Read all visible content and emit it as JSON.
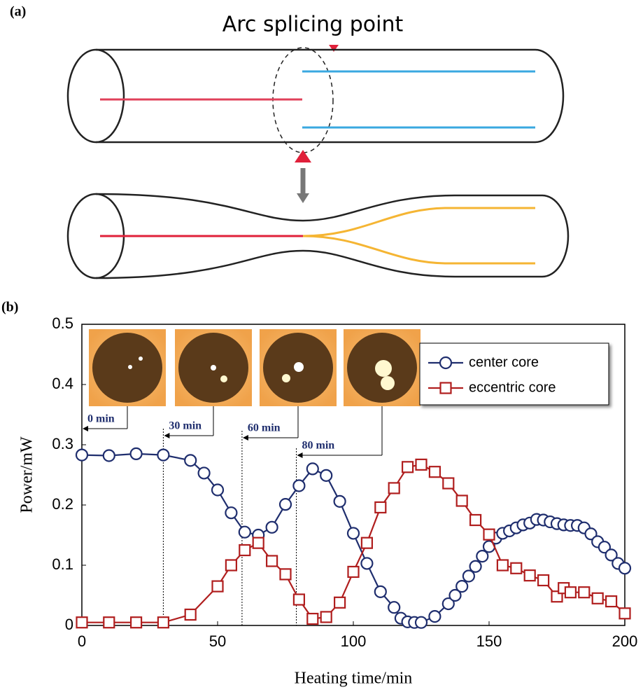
{
  "panel_a": {
    "label": "(a)",
    "annotation": "Arc splicing point"
  },
  "chart_data": {
    "type": "line",
    "label": "(b)",
    "xlabel": "Heating time/min",
    "ylabel": "Power/mW",
    "xlim": [
      0,
      200
    ],
    "xticks": [
      0,
      50,
      100,
      150,
      200
    ],
    "ylim": [
      0,
      0.5
    ],
    "yticks": [
      0,
      0.1,
      0.2,
      0.3,
      0.4,
      0.5
    ],
    "legend": "upper right",
    "series": [
      {
        "name": "center core",
        "color": "#1f2e6e",
        "marker": "circle",
        "x": [
          0,
          10,
          20,
          30,
          40,
          45,
          50,
          55,
          60,
          65,
          70,
          75,
          80,
          85,
          90,
          95,
          100,
          105,
          110,
          115,
          117.5,
          120,
          122.5,
          125,
          130,
          135,
          137.5,
          140,
          142.5,
          145,
          147.5,
          150,
          152.5,
          155,
          157.5,
          160,
          162.5,
          165,
          167.5,
          170,
          172.5,
          175,
          177.5,
          180,
          182.5,
          185,
          187.5,
          190,
          192.5,
          195,
          197.5,
          200
        ],
        "values": [
          0.283,
          0.282,
          0.285,
          0.283,
          0.274,
          0.253,
          0.225,
          0.187,
          0.155,
          0.15,
          0.163,
          0.201,
          0.232,
          0.26,
          0.249,
          0.206,
          0.153,
          0.103,
          0.056,
          0.03,
          0.012,
          0.006,
          0.005,
          0.005,
          0.015,
          0.036,
          0.05,
          0.065,
          0.082,
          0.098,
          0.115,
          0.131,
          0.145,
          0.153,
          0.157,
          0.162,
          0.167,
          0.17,
          0.176,
          0.175,
          0.172,
          0.169,
          0.167,
          0.166,
          0.166,
          0.162,
          0.152,
          0.139,
          0.13,
          0.117,
          0.103,
          0.095
        ]
      },
      {
        "name": "eccentric core",
        "color": "#b01e1e",
        "marker": "square",
        "x": [
          0,
          10,
          20,
          30,
          40,
          50,
          55,
          60,
          65,
          70,
          75,
          80,
          85,
          90,
          95,
          100,
          105,
          110,
          115,
          120,
          125,
          130,
          135,
          140,
          145,
          150,
          155,
          160,
          165,
          170,
          175,
          177.5,
          180,
          185,
          190,
          195,
          200
        ],
        "values": [
          0.005,
          0.005,
          0.005,
          0.005,
          0.018,
          0.065,
          0.1,
          0.125,
          0.137,
          0.107,
          0.085,
          0.043,
          0.011,
          0.014,
          0.038,
          0.089,
          0.137,
          0.196,
          0.228,
          0.263,
          0.267,
          0.255,
          0.236,
          0.207,
          0.175,
          0.151,
          0.1,
          0.095,
          0.083,
          0.075,
          0.048,
          0.062,
          0.055,
          0.055,
          0.045,
          0.04,
          0.02
        ]
      }
    ],
    "annotations": [
      {
        "text": "0 min",
        "x": 0
      },
      {
        "text": "30 min",
        "x": 30
      },
      {
        "text": "60 min",
        "x": 59
      },
      {
        "text": "80 min",
        "x": 79
      }
    ]
  }
}
